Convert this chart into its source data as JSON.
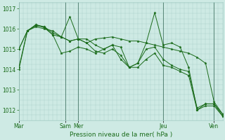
{
  "bg_color": "#ceeae4",
  "grid_color": "#a8cfc8",
  "line_color": "#1a6b1a",
  "marker_color": "#1a6b1a",
  "xlabel": "Pression niveau de la mer( hPa )",
  "ylim": [
    1011.5,
    1017.3
  ],
  "yticks": [
    1012,
    1013,
    1014,
    1015,
    1016,
    1017
  ],
  "series1": [
    1014.0,
    1015.9,
    1016.2,
    1016.1,
    1015.8,
    1015.6,
    1016.6,
    1015.5,
    1015.5,
    1015.2,
    1015.0,
    1015.2,
    1015.1,
    1014.1,
    1014.3,
    1015.3,
    1016.8,
    1015.2,
    1015.3,
    1015.1,
    1014.1,
    1012.0,
    1012.3,
    1012.3,
    1011.7
  ],
  "series2": [
    1015.0,
    1015.9,
    1016.15,
    1016.1,
    1015.7,
    1015.6,
    1015.4,
    1015.5,
    1015.3,
    1015.5,
    1015.55,
    1015.6,
    1015.5,
    1015.4,
    1015.4,
    1015.3,
    1015.2,
    1015.1,
    1015.0,
    1014.9,
    1014.8,
    1014.6,
    1014.3,
    1012.4,
    1011.8
  ],
  "series3": [
    1015.0,
    1015.9,
    1016.1,
    1016.0,
    1015.9,
    1015.6,
    1015.4,
    1015.5,
    1015.3,
    1014.9,
    1014.8,
    1015.0,
    1014.7,
    1014.1,
    1014.1,
    1014.5,
    1014.8,
    1014.2,
    1014.1,
    1013.9,
    1013.7,
    1012.0,
    1012.2,
    1012.2,
    1011.7
  ],
  "series4": [
    1014.1,
    1015.9,
    1016.2,
    1016.05,
    1015.7,
    1014.8,
    1014.9,
    1015.1,
    1015.0,
    1014.8,
    1015.0,
    1015.2,
    1014.5,
    1014.1,
    1014.3,
    1015.0,
    1015.1,
    1014.5,
    1014.2,
    1014.0,
    1013.9,
    1012.1,
    1012.3,
    1012.3,
    1011.8
  ],
  "vline_positions": [
    0.0,
    0.458,
    0.5,
    0.708,
    1.0
  ],
  "xtick_positions": [
    0.0,
    0.458,
    0.5,
    0.708,
    1.0
  ],
  "xtick_labels": [
    "Mar",
    "Sam",
    "Mer",
    "Jeu",
    "Ven"
  ],
  "figsize": [
    3.2,
    2.0
  ],
  "dpi": 100
}
